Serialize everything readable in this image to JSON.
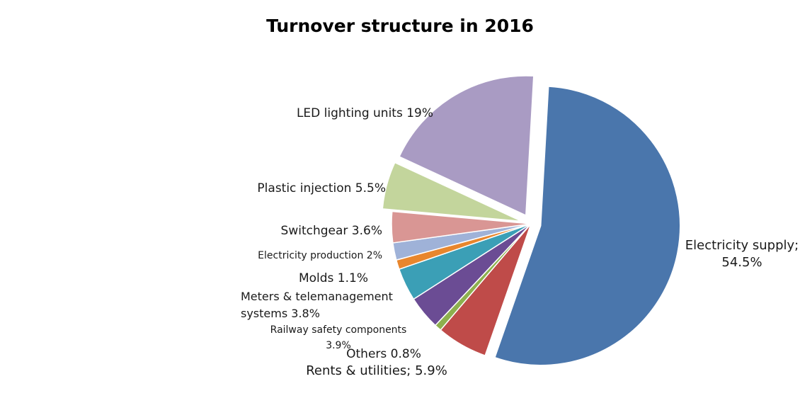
{
  "chart_data": {
    "type": "pie",
    "title": "Turnover structure in 2016",
    "slices": [
      {
        "label_lines": [
          "Electricity supply;",
          "54.5%"
        ],
        "value": 54.5,
        "color": "#4a76ac",
        "exploded": true
      },
      {
        "label_lines": [
          "Rents & utilities; 5.9%"
        ],
        "value": 5.9,
        "color": "#bf4b49",
        "exploded": false
      },
      {
        "label_lines": [
          "Others 0.8%"
        ],
        "value": 0.8,
        "color": "#8db04e",
        "exploded": false
      },
      {
        "label_lines": [
          "Railway safety components",
          "3.9%"
        ],
        "value": 3.9,
        "color": "#6b4c94",
        "exploded": false
      },
      {
        "label_lines": [
          "Meters & telemanagement",
          "systems 3.8%"
        ],
        "value": 3.8,
        "color": "#3b9fb6",
        "exploded": false
      },
      {
        "label_lines": [
          "Molds 1.1%"
        ],
        "value": 1.1,
        "color": "#e8862d",
        "exploded": false
      },
      {
        "label_lines": [
          "Electricity production 2%"
        ],
        "value": 2.0,
        "color": "#9fb2d8",
        "exploded": false
      },
      {
        "label_lines": [
          "Switchgear 3.6%"
        ],
        "value": 3.6,
        "color": "#d99694",
        "exploded": false
      },
      {
        "label_lines": [
          "Plastic injection 5.5%"
        ],
        "value": 5.5,
        "color": "#c3d59c",
        "exploded": true
      },
      {
        "label_lines": [
          "LED lighting units 19%"
        ],
        "value": 19.0,
        "color": "#a99bc3",
        "exploded": true
      }
    ]
  }
}
